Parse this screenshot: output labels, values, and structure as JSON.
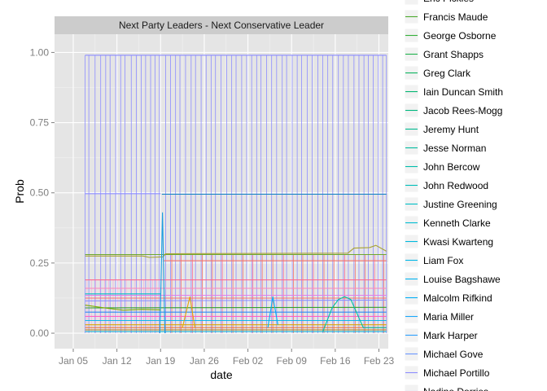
{
  "chart_data": {
    "type": "line",
    "title": "Next Party Leaders - Next Conservative Leader",
    "xlabel": "date",
    "ylabel": "Prob",
    "x_range_days": [
      -3.0,
      50.5
    ],
    "x_ticks": [
      {
        "label": "Jan 05",
        "day": 0
      },
      {
        "label": "Jan 12",
        "day": 7
      },
      {
        "label": "Jan 19",
        "day": 14
      },
      {
        "label": "Jan 26",
        "day": 21
      },
      {
        "label": "Feb 02",
        "day": 28
      },
      {
        "label": "Feb 09",
        "day": 35
      },
      {
        "label": "Feb 16",
        "day": 42
      },
      {
        "label": "Feb 23",
        "day": 49
      }
    ],
    "y_range": [
      -0.055,
      1.065
    ],
    "y_ticks": [
      0.0,
      0.25,
      0.5,
      0.75,
      1.0
    ],
    "y_tick_labels": [
      "0.00",
      "0.25",
      "0.50",
      "0.75",
      "1.00"
    ],
    "grid": true,
    "legend_position": "right",
    "spike_days": [
      1.9,
      2.5,
      3.5,
      4.4,
      5.2,
      5.9,
      6.8,
      7.6,
      8.3,
      9.3,
      10.1,
      10.9,
      11.6,
      12.4,
      13.1,
      13.8,
      14.8,
      15.6,
      16.4,
      17.1,
      18.0,
      18.9,
      19.6,
      20.5,
      21.3,
      22.1,
      22.8,
      23.7,
      24.6,
      25.4,
      26.1,
      27.0,
      27.8,
      28.6,
      29.4,
      30.1,
      31.0,
      31.8,
      32.6,
      33.5,
      34.2,
      35.1,
      35.9,
      36.6,
      37.5,
      38.3,
      39.2,
      40.0,
      40.8,
      41.6,
      42.5,
      43.3,
      44.1,
      45.0,
      45.8,
      46.6,
      47.3,
      48.1,
      48.9,
      49.6,
      50.2
    ],
    "series": [
      {
        "name": "Michael Portillo",
        "color": "#8c8cff",
        "values": [
          [
            1.9,
            0.99
          ],
          [
            50.2,
            0.99
          ]
        ]
      },
      {
        "name": "Mark Harper",
        "color": "#1f88c6",
        "values": [
          [
            14.2,
            0.495
          ],
          [
            50.2,
            0.495
          ]
        ]
      },
      {
        "name": "Michael Portillo",
        "color": "#8c8cff",
        "values": [
          [
            1.9,
            0.497
          ],
          [
            14.0,
            0.497
          ]
        ]
      },
      {
        "name": "Francis Maude",
        "color": "#6fa82e",
        "values": [
          [
            1.9,
            0.28
          ],
          [
            50.2,
            0.28
          ]
        ]
      },
      {
        "name": "George Osborne",
        "color": "#a7a232",
        "values": [
          [
            1.9,
            0.275
          ],
          [
            11.2,
            0.275
          ],
          [
            12.2,
            0.27
          ],
          [
            14.4,
            0.272
          ],
          [
            14.8,
            0.283
          ],
          [
            44.0,
            0.285
          ],
          [
            45.0,
            0.303
          ],
          [
            47.5,
            0.305
          ],
          [
            48.5,
            0.313
          ],
          [
            50.2,
            0.292
          ]
        ]
      },
      {
        "name": "Grant Shapps",
        "color": "#f8766d",
        "values": [
          [
            14.5,
            0.258
          ],
          [
            50.2,
            0.258
          ]
        ]
      },
      {
        "name": "Greg Clark",
        "color": "#ff6c91",
        "values": [
          [
            1.9,
            0.19
          ],
          [
            50.2,
            0.19
          ]
        ]
      },
      {
        "name": "Iain Duncan Smith",
        "color": "#fa8dbe",
        "values": [
          [
            1.9,
            0.16
          ],
          [
            50.2,
            0.16
          ]
        ]
      },
      {
        "name": "Jacob Rees-Mogg",
        "color": "#e47ee8",
        "values": [
          [
            1.9,
            0.135
          ],
          [
            50.2,
            0.135
          ]
        ]
      },
      {
        "name": "Jeremy Hunt",
        "color": "#00bfc4",
        "values": [
          [
            1.9,
            0.14
          ],
          [
            14.1,
            0.14
          ]
        ]
      },
      {
        "name": "Jesse Norman",
        "color": "#f9766d",
        "values": [
          [
            1.9,
            0.125
          ],
          [
            50.2,
            0.125
          ]
        ]
      },
      {
        "name": "John Bercow",
        "color": "#8b93ff",
        "values": [
          [
            1.9,
            0.115
          ],
          [
            50.2,
            0.118
          ]
        ]
      },
      {
        "name": "John Redwood",
        "color": "#35a02c",
        "values": [
          [
            1.9,
            0.09
          ],
          [
            50.2,
            0.092
          ]
        ]
      },
      {
        "name": "Justine Greening",
        "color": "#2c8cf0",
        "values": [
          [
            1.9,
            0.075
          ],
          [
            50.2,
            0.075
          ]
        ]
      },
      {
        "name": "Kenneth Clarke",
        "color": "#ff61c3",
        "values": [
          [
            1.9,
            0.06
          ],
          [
            50.2,
            0.06
          ]
        ]
      },
      {
        "name": "Kwasi Kwarteng",
        "color": "#11b8e8",
        "values": [
          [
            1.9,
            0.045
          ],
          [
            50.2,
            0.045
          ]
        ]
      },
      {
        "name": "Liam Fox",
        "color": "#dba400",
        "values": [
          [
            1.9,
            0.03
          ],
          [
            50.2,
            0.03
          ]
        ]
      },
      {
        "name": "Louise Bagshawe",
        "color": "#ec7a3b",
        "values": [
          [
            1.9,
            0.02
          ],
          [
            50.2,
            0.02
          ]
        ]
      },
      {
        "name": "Malcolm Rifkind",
        "color": "#c18a2a",
        "values": [
          [
            1.9,
            0.012
          ],
          [
            50.2,
            0.012
          ]
        ]
      },
      {
        "name": "Maria Miller",
        "color": "#00b2d5",
        "values": [
          [
            1.9,
            0.006
          ],
          [
            50.2,
            0.006
          ]
        ]
      },
      {
        "name": "Michael Gove",
        "color": "#1a9de0",
        "values": [
          [
            13.9,
            0.0
          ],
          [
            14.3,
            0.43
          ],
          [
            14.7,
            0.0
          ]
        ]
      },
      {
        "name": "Jeremy Hunt",
        "color": "#00c1a3",
        "values": [
          [
            40.0,
            0.005
          ],
          [
            41.5,
            0.09
          ],
          [
            42.5,
            0.12
          ],
          [
            43.5,
            0.13
          ],
          [
            44.5,
            0.12
          ],
          [
            46.5,
            0.02
          ],
          [
            50.2,
            0.02
          ]
        ]
      },
      {
        "name": "Francis Maude",
        "color": "#7cae00",
        "values": [
          [
            1.9,
            0.1
          ],
          [
            5.0,
            0.09
          ],
          [
            8.0,
            0.082
          ],
          [
            11.0,
            0.085
          ],
          [
            14.0,
            0.083
          ]
        ]
      },
      {
        "name": "Liam Fox",
        "color": "#e5a505",
        "values": [
          [
            17.5,
            0.02
          ],
          [
            18.7,
            0.13
          ],
          [
            19.5,
            0.02
          ]
        ]
      },
      {
        "name": "Justine Greening",
        "color": "#00b0f6",
        "values": [
          [
            31.2,
            0.02
          ],
          [
            32.0,
            0.13
          ],
          [
            32.8,
            0.03
          ]
        ]
      }
    ],
    "legend_entries": [
      {
        "name": "Eric Pickles",
        "color": "#5da42c"
      },
      {
        "name": "Francis Maude",
        "color": "#4caa2e"
      },
      {
        "name": "George Osborne",
        "color": "#35b03a"
      },
      {
        "name": "Grant Shapps",
        "color": "#1fb24d"
      },
      {
        "name": "Greg Clark",
        "color": "#0cb45f"
      },
      {
        "name": "Iain Duncan Smith",
        "color": "#00b66f"
      },
      {
        "name": "Jacob Rees-Mogg",
        "color": "#00b87f"
      },
      {
        "name": "Jeremy Hunt",
        "color": "#00ba8f"
      },
      {
        "name": "Jesse Norman",
        "color": "#00bb9e"
      },
      {
        "name": "John Bercow",
        "color": "#00bcac"
      },
      {
        "name": "John Redwood",
        "color": "#00bdb9"
      },
      {
        "name": "Justine Greening",
        "color": "#00bdc6"
      },
      {
        "name": "Kenneth Clarke",
        "color": "#00bcd2"
      },
      {
        "name": "Kwasi Kwarteng",
        "color": "#00badd"
      },
      {
        "name": "Liam Fox",
        "color": "#00b7e7"
      },
      {
        "name": "Louise Bagshawe",
        "color": "#00b3f0"
      },
      {
        "name": "Malcolm Rifkind",
        "color": "#00aef6"
      },
      {
        "name": "Maria Miller",
        "color": "#1ba8fb"
      },
      {
        "name": "Mark Harper",
        "color": "#2d9ffe"
      },
      {
        "name": "Michael Gove",
        "color": "#6b96ff"
      },
      {
        "name": "Michael Portillo",
        "color": "#8c8cff"
      },
      {
        "name": "Nadine Dorries",
        "color": "#a380ff"
      }
    ]
  }
}
